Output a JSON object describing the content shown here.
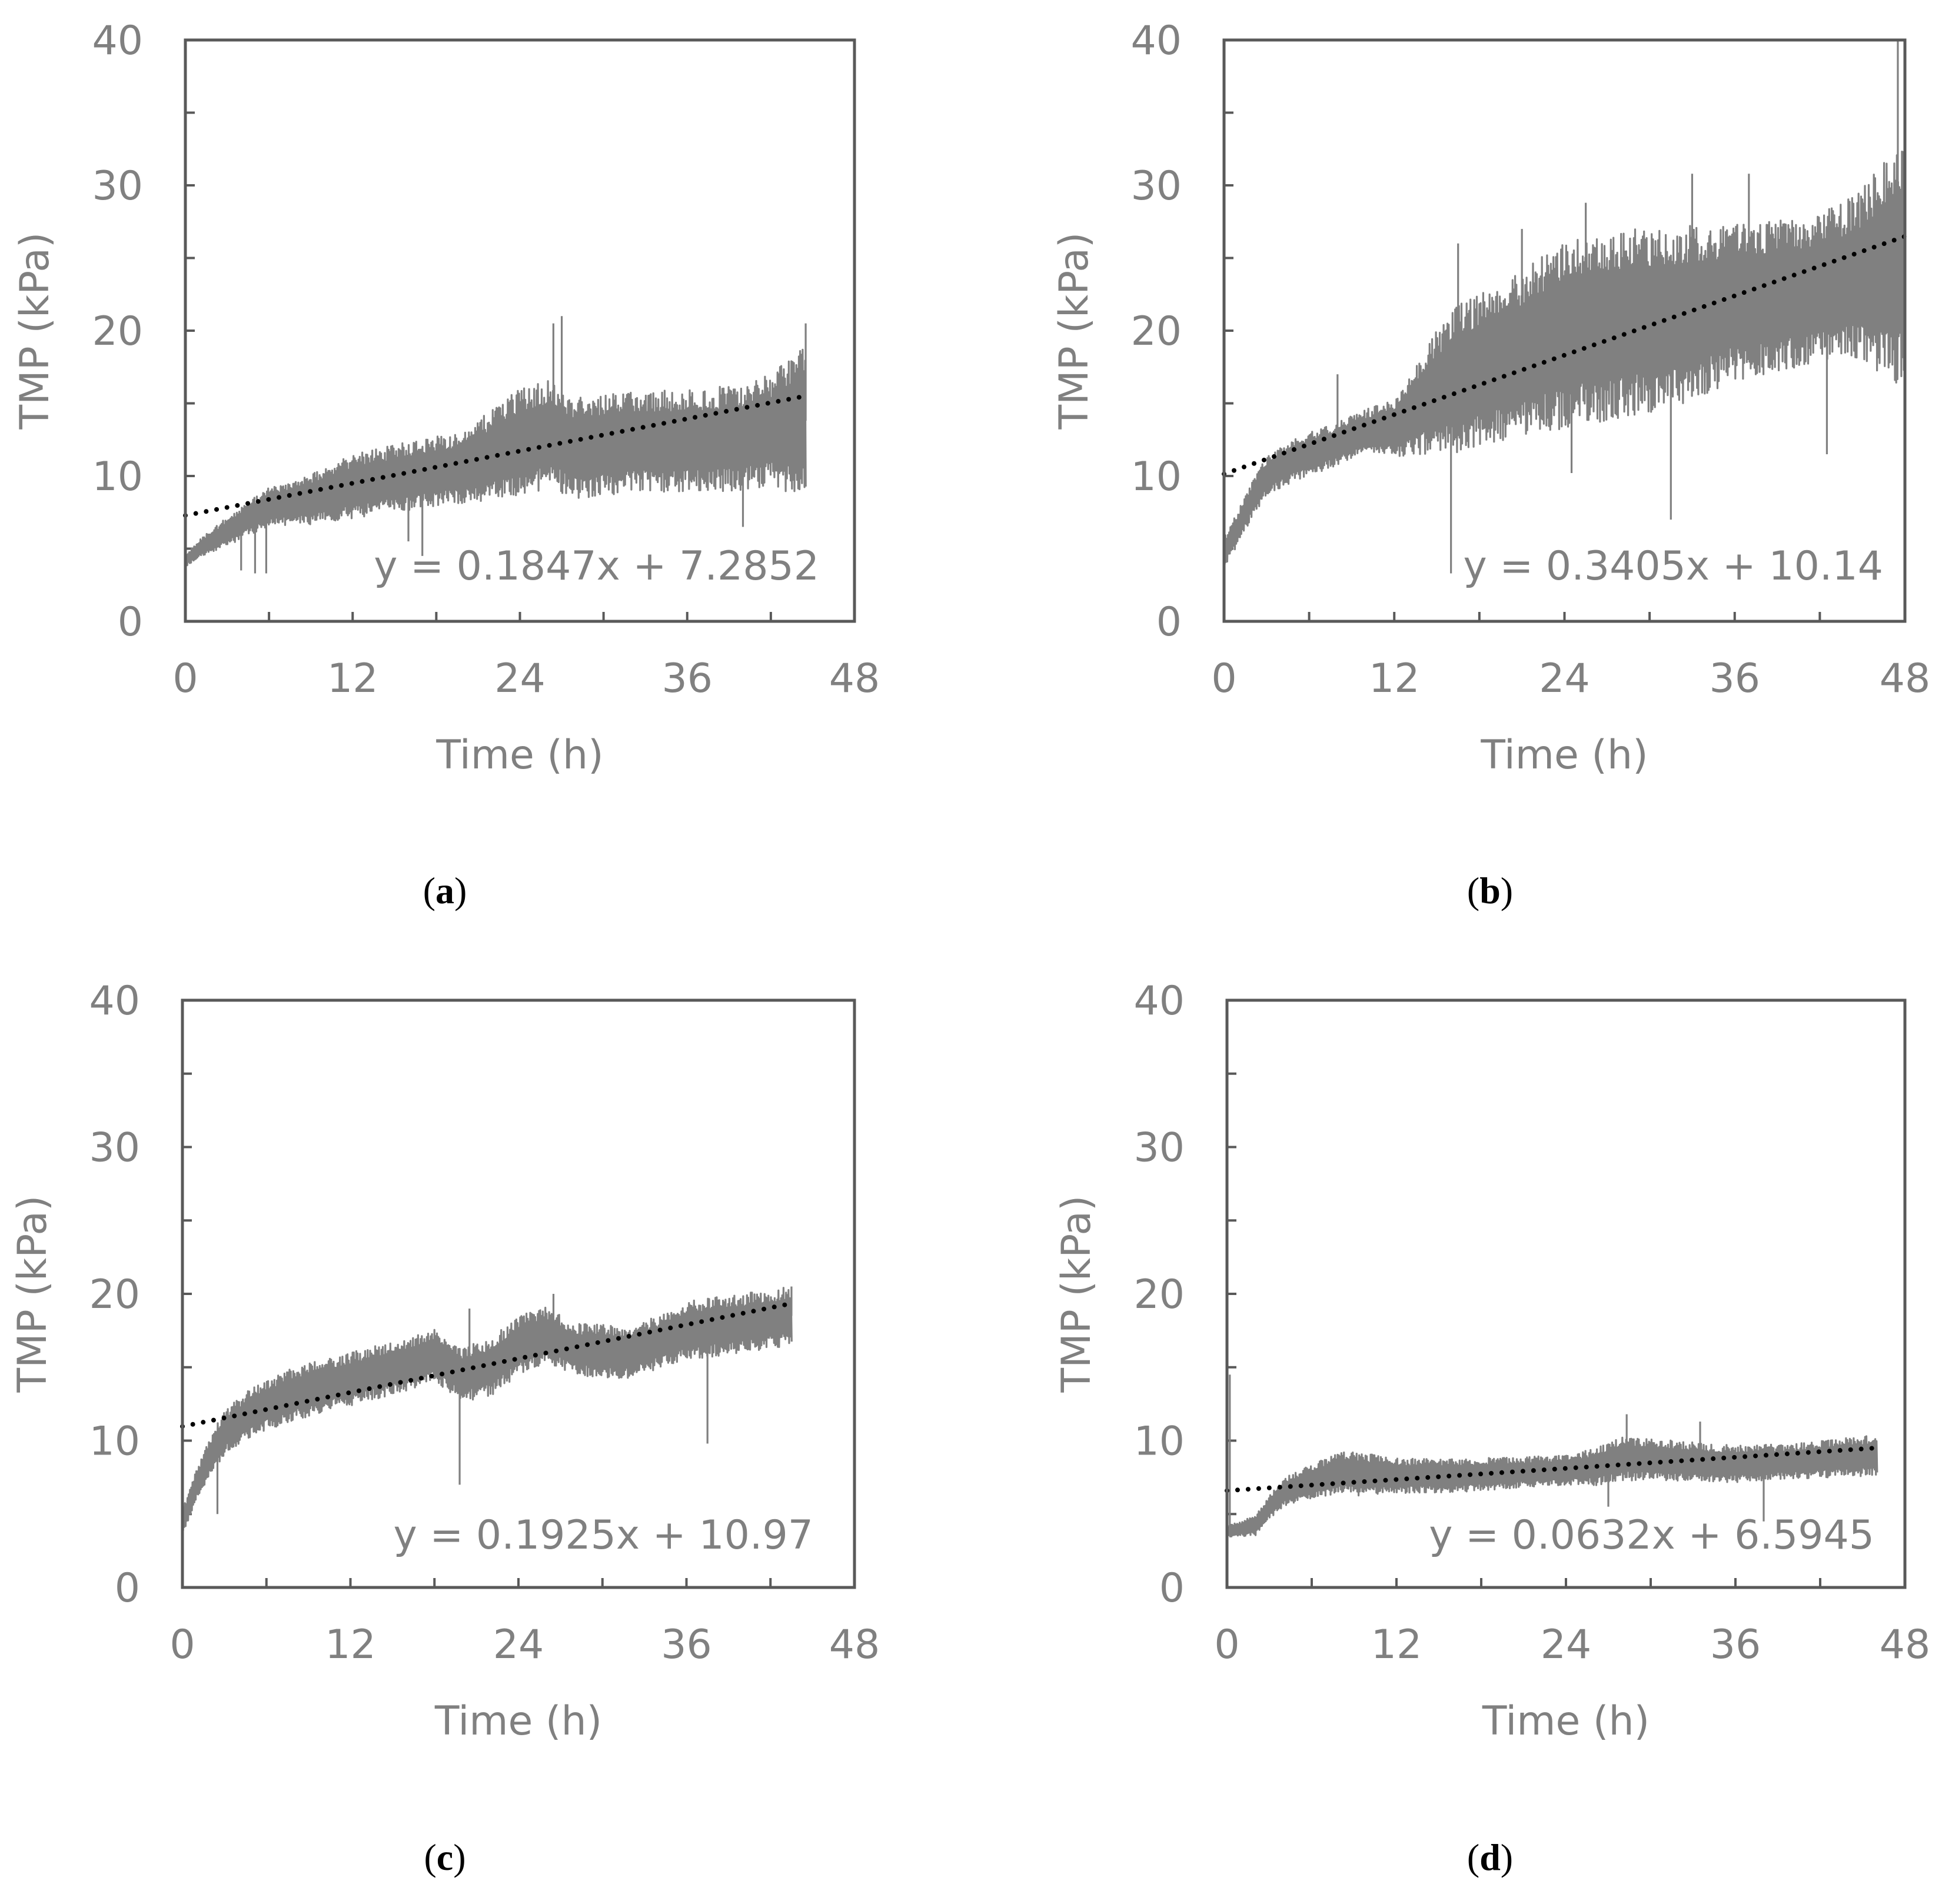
{
  "colors": {
    "series": "#808080",
    "trendline": "#000000",
    "axis": "#595959",
    "text": "#808080",
    "caption": "#000000"
  },
  "chart_data": [
    {
      "type": "line",
      "panel": "(a)",
      "caption": {
        "open": "(",
        "letter": "a",
        "close": ")"
      },
      "xlabel": "Time (h)",
      "ylabel": "TMP (kPa)",
      "xlim": [
        0,
        48
      ],
      "ylim": [
        0,
        40
      ],
      "xticks": [
        0,
        12,
        24,
        36,
        48
      ],
      "yticks": [
        0,
        10,
        20,
        30,
        40
      ],
      "series": [
        {
          "name": "TMP",
          "x_end": 44.5,
          "baseline": [
            [
              0,
              4.2
            ],
            [
              1,
              5.0
            ],
            [
              2,
              5.6
            ],
            [
              4,
              6.8
            ],
            [
              6,
              7.9
            ],
            [
              9,
              8.4
            ],
            [
              12,
              9.3
            ],
            [
              16,
              10.0
            ],
            [
              20,
              10.6
            ],
            [
              24,
              12.3
            ],
            [
              26,
              12.9
            ],
            [
              28,
              11.9
            ],
            [
              32,
              12.4
            ],
            [
              36,
              12.4
            ],
            [
              40,
              12.7
            ],
            [
              44.5,
              13.8
            ]
          ],
          "amplitude": [
            [
              0,
              0.4
            ],
            [
              3,
              1.0
            ],
            [
              6,
              1.3
            ],
            [
              12,
              2.2
            ],
            [
              20,
              2.5
            ],
            [
              24,
              3.8
            ],
            [
              28,
              3.5
            ],
            [
              36,
              3.5
            ],
            [
              42,
              3.8
            ],
            [
              44.5,
              5.5
            ]
          ],
          "spikes": [
            {
              "x": 27,
              "y": 21
            },
            {
              "x": 26.4,
              "y": 20.5
            },
            {
              "x": 44.5,
              "y": 20.5
            },
            {
              "x": 4,
              "y": 3.5
            },
            {
              "x": 5,
              "y": 3.3
            },
            {
              "x": 5.8,
              "y": 3.3
            },
            {
              "x": 16,
              "y": 5.5
            },
            {
              "x": 17,
              "y": 4.5
            },
            {
              "x": 40,
              "y": 6.5
            }
          ]
        }
      ],
      "trendline": {
        "slope": 0.1847,
        "intercept": 7.2852,
        "x_end": 44.5,
        "equation": "y = 0.1847x + 7.2852"
      }
    },
    {
      "type": "line",
      "panel": "(b)",
      "caption": {
        "open": "(",
        "letter": "b",
        "close": ")"
      },
      "xlabel": "Time (h)",
      "ylabel": "TMP (kPa)",
      "xlim": [
        0,
        48
      ],
      "ylim": [
        0,
        40
      ],
      "xticks": [
        0,
        12,
        24,
        36,
        48
      ],
      "yticks": [
        0,
        10,
        20,
        30,
        40
      ],
      "series": [
        {
          "name": "TMP",
          "x_end": 48,
          "baseline": [
            [
              0,
              4.8
            ],
            [
              1,
              6.5
            ],
            [
              2,
              8.5
            ],
            [
              3,
              10.0
            ],
            [
              5,
              11.2
            ],
            [
              8,
              12.2
            ],
            [
              10,
              13.1
            ],
            [
              12,
              13.2
            ],
            [
              14,
              15.0
            ],
            [
              16,
              16.5
            ],
            [
              20,
              18.0
            ],
            [
              24,
              19.8
            ],
            [
              28,
              20.5
            ],
            [
              32,
              21.0
            ],
            [
              36,
              22.0
            ],
            [
              40,
              22.5
            ],
            [
              44,
              23.5
            ],
            [
              46,
              24.0
            ],
            [
              48,
              25.0
            ]
          ],
          "amplitude": [
            [
              0,
              1.0
            ],
            [
              5,
              1.5
            ],
            [
              10,
              1.5
            ],
            [
              12,
              2.0
            ],
            [
              16,
              5.0
            ],
            [
              20,
              5.5
            ],
            [
              24,
              6.5
            ],
            [
              30,
              6.5
            ],
            [
              36,
              5.5
            ],
            [
              42,
              5.0
            ],
            [
              45,
              6.0
            ],
            [
              48,
              9.0
            ]
          ],
          "spikes": [
            {
              "x": 8,
              "y": 17
            },
            {
              "x": 16,
              "y": 3.3
            },
            {
              "x": 24.5,
              "y": 10.2
            },
            {
              "x": 31.5,
              "y": 7.0
            },
            {
              "x": 42.5,
              "y": 11.5
            },
            {
              "x": 47.5,
              "y": 40
            },
            {
              "x": 16.5,
              "y": 26
            },
            {
              "x": 21,
              "y": 27
            },
            {
              "x": 25.5,
              "y": 28.8
            },
            {
              "x": 33,
              "y": 30.8
            },
            {
              "x": 37,
              "y": 30.8
            }
          ]
        }
      ],
      "trendline": {
        "slope": 0.3405,
        "intercept": 10.14,
        "x_end": 48,
        "equation": "y = 0.3405x + 10.14"
      }
    },
    {
      "type": "line",
      "panel": "(c)",
      "caption": {
        "open": "(",
        "letter": "c",
        "close": ")"
      },
      "xlabel": "Time (h)",
      "ylabel": "TMP (kPa)",
      "xlim": [
        0,
        48
      ],
      "ylim": [
        0,
        40
      ],
      "xticks": [
        0,
        12,
        24,
        36,
        48
      ],
      "yticks": [
        0,
        10,
        20,
        30,
        40
      ],
      "series": [
        {
          "name": "TMP",
          "x_end": 43.5,
          "baseline": [
            [
              0,
              4.5
            ],
            [
              1,
              7.0
            ],
            [
              2,
              9.0
            ],
            [
              3,
              10.6
            ],
            [
              5,
              12.0
            ],
            [
              8,
              13.2
            ],
            [
              12,
              14.2
            ],
            [
              16,
              15.2
            ],
            [
              18,
              15.8
            ],
            [
              20,
              14.5
            ],
            [
              22,
              15.0
            ],
            [
              24,
              16.5
            ],
            [
              26,
              17.2
            ],
            [
              28,
              16.2
            ],
            [
              32,
              16.0
            ],
            [
              36,
              17.5
            ],
            [
              40,
              18.0
            ],
            [
              43.5,
              18.5
            ]
          ],
          "amplitude": [
            [
              0,
              0.8
            ],
            [
              3,
              1.5
            ],
            [
              8,
              1.8
            ],
            [
              14,
              1.8
            ],
            [
              18,
              1.8
            ],
            [
              24,
              2.0
            ],
            [
              28,
              1.8
            ],
            [
              34,
              1.8
            ],
            [
              36,
              2.0
            ],
            [
              43.5,
              2.0
            ]
          ],
          "spikes": [
            {
              "x": 2.5,
              "y": 5.0
            },
            {
              "x": 19.8,
              "y": 7.0
            },
            {
              "x": 20.5,
              "y": 19.0
            },
            {
              "x": 37.5,
              "y": 9.8
            },
            {
              "x": 43.5,
              "y": 20.5
            },
            {
              "x": 26.5,
              "y": 20.0
            }
          ]
        }
      ],
      "trendline": {
        "slope": 0.1925,
        "intercept": 10.97,
        "x_end": 43.5,
        "equation": "y = 0.1925x + 10.97"
      }
    },
    {
      "type": "line",
      "panel": "(d)",
      "caption": {
        "open": "(",
        "letter": "d",
        "close": ")"
      },
      "xlabel": "Time (h)",
      "ylabel": "TMP (kPa)",
      "xlim": [
        0,
        48
      ],
      "ylim": [
        0,
        40
      ],
      "xticks": [
        0,
        12,
        24,
        36,
        48
      ],
      "yticks": [
        0,
        10,
        20,
        30,
        40
      ],
      "series": [
        {
          "name": "TMP",
          "x_end": 46,
          "baseline": [
            [
              0,
              3.8
            ],
            [
              2,
              4.2
            ],
            [
              3,
              5.5
            ],
            [
              4,
              6.5
            ],
            [
              6,
              7.2
            ],
            [
              8,
              7.8
            ],
            [
              12,
              7.6
            ],
            [
              16,
              7.6
            ],
            [
              20,
              7.8
            ],
            [
              24,
              8.0
            ],
            [
              26,
              8.2
            ],
            [
              28,
              8.8
            ],
            [
              32,
              8.6
            ],
            [
              36,
              8.4
            ],
            [
              40,
              8.6
            ],
            [
              46,
              9.0
            ]
          ],
          "amplitude": [
            [
              0,
              0.4
            ],
            [
              3,
              0.8
            ],
            [
              6,
              1.2
            ],
            [
              9,
              1.5
            ],
            [
              12,
              1.2
            ],
            [
              24,
              1.0
            ],
            [
              28,
              1.5
            ],
            [
              34,
              1.3
            ],
            [
              40,
              1.2
            ],
            [
              46,
              1.4
            ]
          ],
          "spikes": [
            {
              "x": 0.2,
              "y": 14.5
            },
            {
              "x": 27,
              "y": 5.5
            },
            {
              "x": 38,
              "y": 4.5
            },
            {
              "x": 28.3,
              "y": 11.8
            },
            {
              "x": 33.5,
              "y": 11.3
            }
          ]
        }
      ],
      "trendline": {
        "slope": 0.0632,
        "intercept": 6.5945,
        "x_end": 46,
        "equation": "y = 0.0632x + 6.5945"
      }
    }
  ]
}
